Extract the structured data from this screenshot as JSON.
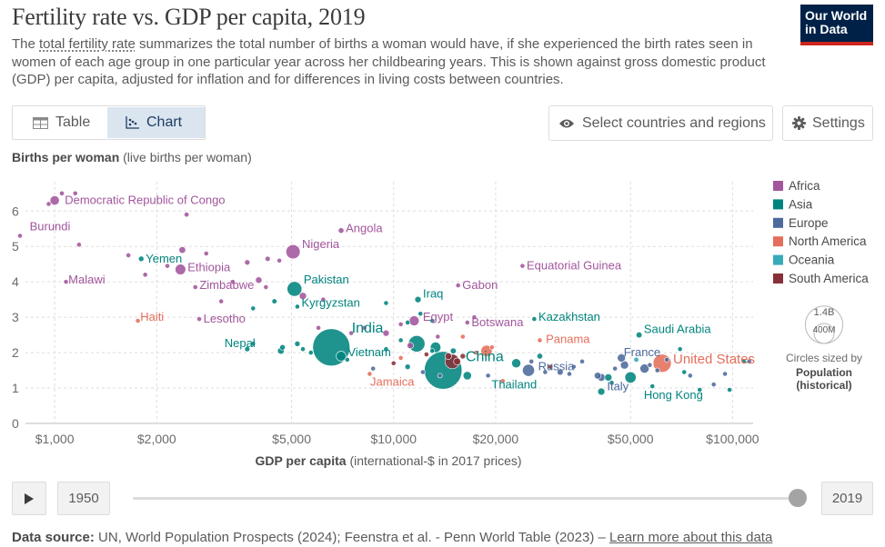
{
  "header": {
    "title": "Fertility rate vs. GDP per capita, 2019",
    "subtitle_link": "total fertility rate",
    "subtitle_pre": "The ",
    "subtitle_post": " summarizes the total number of births a woman would have, if she experienced the birth rates seen in women of each age group in one particular year across her childbearing years. This is shown against gross domestic product (GDP) per capita, adjusted for inflation and for differences in living costs between countries.",
    "logo_line1": "Our World",
    "logo_line2": "in Data"
  },
  "controls": {
    "tab_table": "Table",
    "tab_chart": "Chart",
    "select_label": "Select countries and regions",
    "settings_label": "Settings"
  },
  "timeline": {
    "start_year": "1950",
    "end_year": "2019",
    "position": 1.0
  },
  "footer": {
    "source_label": "Data source:",
    "source_text": "UN, World Population Prospects (2024); Feenstra et al. - Penn World Table (2023) –",
    "learn_more": "Learn more about this data"
  },
  "colors": {
    "Africa": "#a2559c",
    "Asia": "#00847e",
    "Europe": "#4c6a9c",
    "North America": "#e56e5a",
    "Oceania": "#38aaba",
    "South America": "#883039"
  },
  "chart_data": {
    "type": "scatter",
    "title": "Fertility rate vs. GDP per capita, 2019",
    "ylabel_bold": "Births per woman",
    "ylabel_rest": "(live births per woman)",
    "xlabel_bold": "GDP per capita",
    "xlabel_rest": "(international-$ in 2017 prices)",
    "x_scale": "log",
    "xlim": [
      820,
      115000
    ],
    "ylim": [
      0,
      6.7
    ],
    "x_ticks": [
      1000,
      2000,
      5000,
      10000,
      20000,
      50000,
      100000
    ],
    "x_tick_labels": [
      "$1,000",
      "$2,000",
      "$5,000",
      "$10,000",
      "$20,000",
      "$50,000",
      "$100,000"
    ],
    "y_ticks": [
      0,
      1,
      2,
      3,
      4,
      5,
      6
    ],
    "legend": [
      "Africa",
      "Asia",
      "Europe",
      "North America",
      "Oceania",
      "South America"
    ],
    "size_legend": {
      "large_label": "1.4B",
      "small_label": "400M",
      "note": "Circles sized by",
      "note_bold1": "Population",
      "note_bold2": "(historical)",
      "large_value": 1400,
      "small_value": 400
    },
    "labeled_points": [
      {
        "name": "Democratic Republic of Congo",
        "x": 1000,
        "y": 6.3,
        "pop": 87,
        "region": "Africa"
      },
      {
        "name": "Burundi",
        "x": 760,
        "y": 5.3,
        "pop": 12,
        "region": "Africa"
      },
      {
        "name": "Angola",
        "x": 7000,
        "y": 5.45,
        "pop": 32,
        "region": "Africa"
      },
      {
        "name": "Nigeria",
        "x": 5050,
        "y": 4.85,
        "pop": 200,
        "region": "Africa"
      },
      {
        "name": "Yemen",
        "x": 1800,
        "y": 4.65,
        "pop": 30,
        "region": "Asia"
      },
      {
        "name": "Ethiopia",
        "x": 2350,
        "y": 4.35,
        "pop": 112,
        "region": "Africa"
      },
      {
        "name": "Equatorial Guinea",
        "x": 24000,
        "y": 4.45,
        "pop": 1.4,
        "region": "Africa"
      },
      {
        "name": "Malawi",
        "x": 1080,
        "y": 4.0,
        "pop": 19,
        "region": "Africa"
      },
      {
        "name": "Zimbabwe",
        "x": 2600,
        "y": 3.85,
        "pop": 15,
        "region": "Africa"
      },
      {
        "name": "Gabon",
        "x": 15500,
        "y": 3.9,
        "pop": 2.2,
        "region": "Africa"
      },
      {
        "name": "Pakistan",
        "x": 5100,
        "y": 3.8,
        "pop": 217,
        "region": "Asia"
      },
      {
        "name": "Kyrgyzstan",
        "x": 5200,
        "y": 3.3,
        "pop": 6.5,
        "region": "Asia"
      },
      {
        "name": "Iraq",
        "x": 11800,
        "y": 3.5,
        "pop": 40,
        "region": "Asia"
      },
      {
        "name": "Haiti",
        "x": 1760,
        "y": 2.9,
        "pop": 11,
        "region": "North America"
      },
      {
        "name": "Lesotho",
        "x": 2670,
        "y": 2.95,
        "pop": 2.1,
        "region": "Africa"
      },
      {
        "name": "Egypt",
        "x": 11500,
        "y": 2.9,
        "pop": 100,
        "region": "Africa"
      },
      {
        "name": "Botswana",
        "x": 16500,
        "y": 2.85,
        "pop": 2.3,
        "region": "Africa"
      },
      {
        "name": "Kazakhstan",
        "x": 26000,
        "y": 2.95,
        "pop": 18.5,
        "region": "Asia"
      },
      {
        "name": "India",
        "x": 6550,
        "y": 2.15,
        "pop": 1380,
        "region": "Asia"
      },
      {
        "name": "Saudi Arabia",
        "x": 53000,
        "y": 2.5,
        "pop": 35,
        "region": "Asia"
      },
      {
        "name": "Panama",
        "x": 27000,
        "y": 2.35,
        "pop": 4.2,
        "region": "North America"
      },
      {
        "name": "Nepal",
        "x": 3700,
        "y": 2.1,
        "pop": 28,
        "region": "Asia"
      },
      {
        "name": "Vietnam",
        "x": 7000,
        "y": 1.9,
        "pop": 96,
        "region": "Asia"
      },
      {
        "name": "China",
        "x": 14000,
        "y": 1.5,
        "pop": 1420,
        "region": "Asia"
      },
      {
        "name": "France",
        "x": 47000,
        "y": 1.85,
        "pop": 67,
        "region": "Europe"
      },
      {
        "name": "United States",
        "x": 62000,
        "y": 1.7,
        "pop": 330,
        "region": "North America"
      },
      {
        "name": "Russia",
        "x": 25000,
        "y": 1.5,
        "pop": 145,
        "region": "Europe"
      },
      {
        "name": "Jamaica",
        "x": 8500,
        "y": 1.4,
        "pop": 2.9,
        "region": "North America"
      },
      {
        "name": "Thailand",
        "x": 16500,
        "y": 1.35,
        "pop": 70,
        "region": "Asia"
      },
      {
        "name": "Italy",
        "x": 41000,
        "y": 1.3,
        "pop": 60,
        "region": "Europe"
      },
      {
        "name": "Hong Kong",
        "x": 58000,
        "y": 1.05,
        "pop": 7.5,
        "region": "Asia"
      }
    ],
    "points": [
      {
        "x": 1050,
        "y": 6.5,
        "pop": 23,
        "region": "Africa"
      },
      {
        "x": 1150,
        "y": 6.5,
        "pop": 16,
        "region": "Africa"
      },
      {
        "x": 960,
        "y": 6.2,
        "pop": 12,
        "region": "Africa"
      },
      {
        "x": 2450,
        "y": 5.9,
        "pop": 24,
        "region": "Africa"
      },
      {
        "x": 1180,
        "y": 5.05,
        "pop": 20,
        "region": "Africa"
      },
      {
        "x": 2380,
        "y": 4.9,
        "pop": 45,
        "region": "Africa"
      },
      {
        "x": 1650,
        "y": 4.75,
        "pop": 12,
        "region": "Africa"
      },
      {
        "x": 2150,
        "y": 4.45,
        "pop": 8,
        "region": "Africa"
      },
      {
        "x": 2800,
        "y": 4.8,
        "pop": 19,
        "region": "Africa"
      },
      {
        "x": 3700,
        "y": 4.55,
        "pop": 29,
        "region": "Africa"
      },
      {
        "x": 4250,
        "y": 4.65,
        "pop": 27,
        "region": "Africa"
      },
      {
        "x": 4600,
        "y": 4.6,
        "pop": 16,
        "region": "Africa"
      },
      {
        "x": 1850,
        "y": 4.2,
        "pop": 23,
        "region": "Africa"
      },
      {
        "x": 3350,
        "y": 4.0,
        "pop": 17,
        "region": "Africa"
      },
      {
        "x": 4000,
        "y": 4.05,
        "pop": 42,
        "region": "Africa"
      },
      {
        "x": 4200,
        "y": 3.85,
        "pop": 10,
        "region": "Africa"
      },
      {
        "x": 5400,
        "y": 3.6,
        "pop": 52,
        "region": "Africa"
      },
      {
        "x": 3100,
        "y": 3.45,
        "pop": 15,
        "region": "Africa"
      },
      {
        "x": 4450,
        "y": 3.45,
        "pop": 26,
        "region": "Asia"
      },
      {
        "x": 3850,
        "y": 3.25,
        "pop": 9,
        "region": "Asia"
      },
      {
        "x": 9500,
        "y": 3.4,
        "pop": 10,
        "region": "Asia"
      },
      {
        "x": 6200,
        "y": 3.5,
        "pop": 4,
        "region": "Africa"
      },
      {
        "x": 12000,
        "y": 3.1,
        "pop": 4,
        "region": "Asia"
      },
      {
        "x": 11000,
        "y": 2.85,
        "pop": 11,
        "region": "Asia"
      },
      {
        "x": 13000,
        "y": 2.9,
        "pop": 10,
        "region": "Asia"
      },
      {
        "x": 10500,
        "y": 2.8,
        "pop": 3,
        "region": "Africa"
      },
      {
        "x": 17300,
        "y": 3.0,
        "pop": 0.5,
        "region": "Africa"
      },
      {
        "x": 8200,
        "y": 2.7,
        "pop": 3,
        "region": "Africa"
      },
      {
        "x": 7500,
        "y": 2.55,
        "pop": 2,
        "region": "Africa"
      },
      {
        "x": 6000,
        "y": 2.7,
        "pop": 5,
        "region": "Africa"
      },
      {
        "x": 9500,
        "y": 2.55,
        "pop": 40,
        "region": "Africa"
      },
      {
        "x": 11200,
        "y": 2.2,
        "pop": 40,
        "region": "Africa"
      },
      {
        "x": 10500,
        "y": 2.35,
        "pop": 12,
        "region": "Asia"
      },
      {
        "x": 13500,
        "y": 2.45,
        "pop": 2,
        "region": "Africa"
      },
      {
        "x": 16000,
        "y": 2.45,
        "pop": 2,
        "region": "North America"
      },
      {
        "x": 3850,
        "y": 2.25,
        "pop": 7,
        "region": "Asia"
      },
      {
        "x": 4700,
        "y": 2.15,
        "pop": 30,
        "region": "Asia"
      },
      {
        "x": 5400,
        "y": 2.1,
        "pop": 13,
        "region": "Asia"
      },
      {
        "x": 4650,
        "y": 2.05,
        "pop": 45,
        "region": "Asia"
      },
      {
        "x": 5700,
        "y": 2.0,
        "pop": 16,
        "region": "Asia"
      },
      {
        "x": 11700,
        "y": 2.25,
        "pop": 270,
        "region": "Asia"
      },
      {
        "x": 13300,
        "y": 2.15,
        "pop": 110,
        "region": "Asia"
      },
      {
        "x": 9500,
        "y": 2.1,
        "pop": 20,
        "region": "Asia"
      },
      {
        "x": 13000,
        "y": 2.05,
        "pop": 4,
        "region": "Asia"
      },
      {
        "x": 15000,
        "y": 2.05,
        "pop": 35,
        "region": "Asia"
      },
      {
        "x": 12500,
        "y": 1.95,
        "pop": 8,
        "region": "South America"
      },
      {
        "x": 14500,
        "y": 1.9,
        "pop": 45,
        "region": "South America"
      },
      {
        "x": 14900,
        "y": 1.75,
        "pop": 210,
        "region": "South America"
      },
      {
        "x": 16000,
        "y": 1.9,
        "pop": 30,
        "region": "South America"
      },
      {
        "x": 15400,
        "y": 1.75,
        "pop": 50,
        "region": "South America"
      },
      {
        "x": 18800,
        "y": 2.05,
        "pop": 128,
        "region": "North America"
      },
      {
        "x": 17500,
        "y": 2.0,
        "pop": 10,
        "region": "North America"
      },
      {
        "x": 19500,
        "y": 2.15,
        "pop": 12,
        "region": "North America"
      },
      {
        "x": 10500,
        "y": 1.85,
        "pop": 10,
        "region": "North America"
      },
      {
        "x": 10000,
        "y": 1.7,
        "pop": 17,
        "region": "South America"
      },
      {
        "x": 11000,
        "y": 1.6,
        "pop": 30,
        "region": "Asia"
      },
      {
        "x": 8700,
        "y": 1.55,
        "pop": 4,
        "region": "Europe"
      },
      {
        "x": 12200,
        "y": 1.45,
        "pop": 7,
        "region": "Europe"
      },
      {
        "x": 13700,
        "y": 1.35,
        "pop": 3,
        "region": "Europe"
      },
      {
        "x": 19000,
        "y": 1.35,
        "pop": 5,
        "region": "Europe"
      },
      {
        "x": 21000,
        "y": 1.2,
        "pop": 3,
        "region": "North America"
      },
      {
        "x": 23000,
        "y": 1.7,
        "pop": 84,
        "region": "Asia"
      },
      {
        "x": 25500,
        "y": 1.75,
        "pop": 5,
        "region": "Europe"
      },
      {
        "x": 27000,
        "y": 1.9,
        "pop": 32,
        "region": "Asia"
      },
      {
        "x": 29000,
        "y": 1.6,
        "pop": 19,
        "region": "South America"
      },
      {
        "x": 31000,
        "y": 1.45,
        "pop": 38,
        "region": "Europe"
      },
      {
        "x": 28000,
        "y": 1.45,
        "pop": 20,
        "region": "Europe"
      },
      {
        "x": 33000,
        "y": 1.4,
        "pop": 10,
        "region": "Europe"
      },
      {
        "x": 34000,
        "y": 1.6,
        "pop": 10,
        "region": "Europe"
      },
      {
        "x": 36000,
        "y": 1.75,
        "pop": 5,
        "region": "Europe"
      },
      {
        "x": 40000,
        "y": 1.35,
        "pop": 47,
        "region": "Europe"
      },
      {
        "x": 43000,
        "y": 1.3,
        "pop": 52,
        "region": "Asia"
      },
      {
        "x": 44000,
        "y": 1.15,
        "pop": 4,
        "region": "Asia"
      },
      {
        "x": 41000,
        "y": 0.9,
        "pop": 51,
        "region": "Asia"
      },
      {
        "x": 45000,
        "y": 1.55,
        "pop": 10,
        "region": "Europe"
      },
      {
        "x": 48000,
        "y": 1.65,
        "pop": 67,
        "region": "Europe"
      },
      {
        "x": 52000,
        "y": 1.8,
        "pop": 26,
        "region": "Oceania"
      },
      {
        "x": 55000,
        "y": 1.55,
        "pop": 83,
        "region": "Europe"
      },
      {
        "x": 50000,
        "y": 1.3,
        "pop": 126,
        "region": "Asia"
      },
      {
        "x": 57000,
        "y": 1.65,
        "pop": 9,
        "region": "Europe"
      },
      {
        "x": 60000,
        "y": 1.5,
        "pop": 5,
        "region": "Europe"
      },
      {
        "x": 64000,
        "y": 1.8,
        "pop": 5,
        "region": "Europe"
      },
      {
        "x": 72000,
        "y": 1.45,
        "pop": 4,
        "region": "Asia"
      },
      {
        "x": 75000,
        "y": 1.35,
        "pop": 3,
        "region": "Europe"
      },
      {
        "x": 80000,
        "y": 0.95,
        "pop": 3,
        "region": "Asia"
      },
      {
        "x": 88000,
        "y": 1.1,
        "pop": 8,
        "region": "Europe"
      },
      {
        "x": 95000,
        "y": 1.4,
        "pop": 5,
        "region": "Europe"
      },
      {
        "x": 98000,
        "y": 0.95,
        "pop": 6,
        "region": "Asia"
      },
      {
        "x": 108000,
        "y": 1.75,
        "pop": 2.8,
        "region": "Asia"
      },
      {
        "x": 112000,
        "y": 1.75,
        "pop": 0.6,
        "region": "Europe"
      },
      {
        "x": 70000,
        "y": 2.1,
        "pop": 10,
        "region": "Asia"
      },
      {
        "x": 5200,
        "y": 2.25,
        "pop": 30,
        "region": "Asia"
      },
      {
        "x": 7300,
        "y": 1.8,
        "pop": 6,
        "region": "Asia"
      }
    ]
  }
}
